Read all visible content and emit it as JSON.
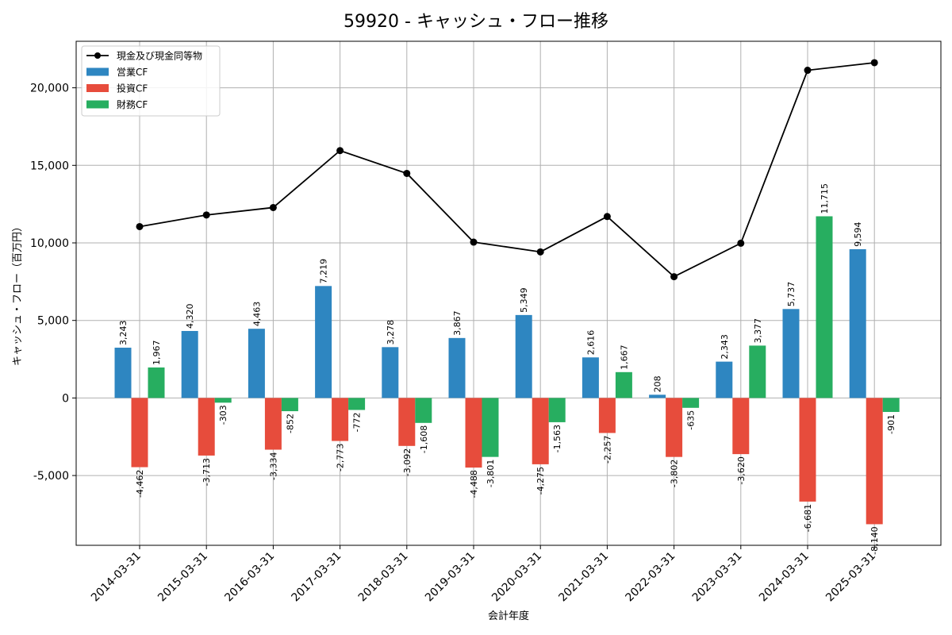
{
  "chart_data": {
    "type": "bar",
    "title": "59920 - キャッシュ・フロー推移",
    "xlabel": "会計年度",
    "ylabel": "キャッシュ・フロー（百万円）",
    "categories": [
      "2014-03-31",
      "2015-03-31",
      "2016-03-31",
      "2017-03-31",
      "2018-03-31",
      "2019-03-31",
      "2020-03-31",
      "2021-03-31",
      "2022-03-31",
      "2023-03-31",
      "2024-03-31",
      "2025-03-31"
    ],
    "ylim": [
      -9500,
      23000
    ],
    "yticks": [
      -5000,
      0,
      5000,
      10000,
      15000,
      20000
    ],
    "ytick_labels": [
      "-5,000",
      "0",
      "5,000",
      "10,000",
      "15,000",
      "20,000"
    ],
    "grid": true,
    "legend_position": "top-left",
    "series": [
      {
        "name": "営業CF",
        "kind": "bar",
        "color": "#2e86c1",
        "values": [
          3243,
          4320,
          4463,
          7219,
          3278,
          3867,
          5349,
          2616,
          208,
          2343,
          5737,
          9594
        ],
        "labels": [
          "3,243",
          "4,320",
          "4,463",
          "7,219",
          "3,278",
          "3,867",
          "5,349",
          "2,616",
          "208",
          "2,343",
          "5,737",
          "9,594"
        ]
      },
      {
        "name": "投資CF",
        "kind": "bar",
        "color": "#e74c3c",
        "values": [
          -4462,
          -3713,
          -3334,
          -2773,
          -3092,
          -4488,
          -4275,
          -2257,
          -3802,
          -3620,
          -6681,
          -8140
        ],
        "labels": [
          "-4,462",
          "-3,713",
          "-3,334",
          "-2,773",
          "-3,092",
          "-4,488",
          "-4,275",
          "-2,257",
          "-3,802",
          "-3,620",
          "-6,681",
          "-8,140"
        ]
      },
      {
        "name": "財務CF",
        "kind": "bar",
        "color": "#27ae60",
        "values": [
          1967,
          -303,
          -852,
          -772,
          -1608,
          -3801,
          -1563,
          1667,
          -635,
          3377,
          11715,
          -901
        ],
        "labels": [
          "1,967",
          "-303",
          "-852",
          "-772",
          "-1,608",
          "-3,801",
          "-1,563",
          "1,667",
          "-635",
          "3,377",
          "11,715",
          "-901"
        ]
      },
      {
        "name": "現金及び現金同等物",
        "kind": "line",
        "color": "#000000",
        "values": [
          11050,
          11800,
          12280,
          15950,
          14480,
          10050,
          9420,
          11700,
          7820,
          9980,
          21130,
          21620
        ]
      }
    ]
  }
}
